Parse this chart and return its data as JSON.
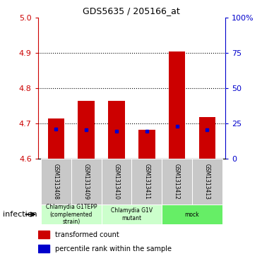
{
  "title": "GDS5635 / 205166_at",
  "samples": [
    "GSM1313408",
    "GSM1313409",
    "GSM1313410",
    "GSM1313411",
    "GSM1313412",
    "GSM1313413"
  ],
  "red_values": [
    4.715,
    4.765,
    4.765,
    4.683,
    4.905,
    4.718
  ],
  "blue_values": [
    4.685,
    4.682,
    4.678,
    4.678,
    4.692,
    4.682
  ],
  "ylim_left": [
    4.6,
    5.0
  ],
  "ylim_right": [
    0,
    100
  ],
  "yticks_left": [
    4.6,
    4.7,
    4.8,
    4.9,
    5.0
  ],
  "yticks_right": [
    0,
    25,
    50,
    75,
    100
  ],
  "ytick_labels_right": [
    "0",
    "25",
    "50",
    "75",
    "100%"
  ],
  "bar_bottom": 4.6,
  "groups": [
    {
      "label": "Chlamydia G1TEPP\n(complemented\nstrain)",
      "span": [
        0,
        2
      ],
      "color": "#ccffcc"
    },
    {
      "label": "Chlamydia G1V\nmutant",
      "span": [
        2,
        4
      ],
      "color": "#ccffcc"
    },
    {
      "label": "mock",
      "span": [
        4,
        6
      ],
      "color": "#66ee66"
    }
  ],
  "legend_red": "transformed count",
  "legend_blue": "percentile rank within the sample",
  "infection_label": "infection",
  "bar_color": "#cc0000",
  "blue_color": "#0000cc",
  "bg_color": "#c8c8c8",
  "grid_color": "black",
  "left_tick_color": "#cc0000",
  "right_tick_color": "#0000cc",
  "bar_width": 0.55,
  "title_fontsize": 9,
  "sample_fontsize": 5.5,
  "group_fontsize": 5.5,
  "legend_fontsize": 7,
  "infection_fontsize": 8
}
